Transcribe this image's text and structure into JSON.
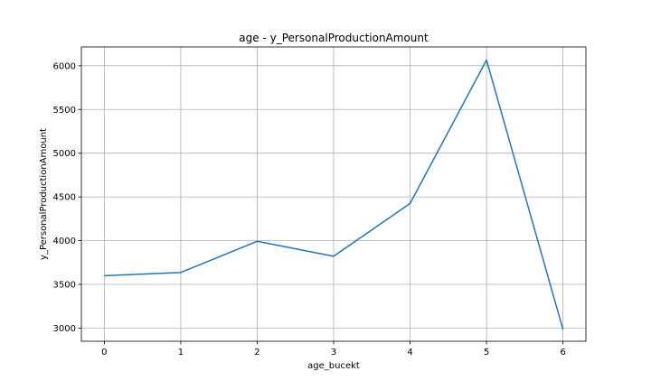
{
  "chart_data": {
    "type": "line",
    "title": "age - y_PersonalProductionAmount",
    "xlabel": "age_bucekt",
    "ylabel": "y_PersonalProductionAmount",
    "x": [
      0,
      1,
      2,
      3,
      4,
      5,
      6
    ],
    "series": [
      {
        "values": [
          3600,
          3636,
          3993,
          3822,
          4425,
          6065,
          2985
        ],
        "color": "#1f77b4"
      }
    ],
    "xlim": [
      -0.3,
      6.3
    ],
    "ylim": [
      2850,
      6215
    ],
    "xticks": [
      0,
      1,
      2,
      3,
      4,
      5,
      6
    ],
    "yticks": [
      3000,
      3500,
      4000,
      4500,
      5000,
      5500,
      6000
    ],
    "grid": true,
    "legend": "none"
  }
}
